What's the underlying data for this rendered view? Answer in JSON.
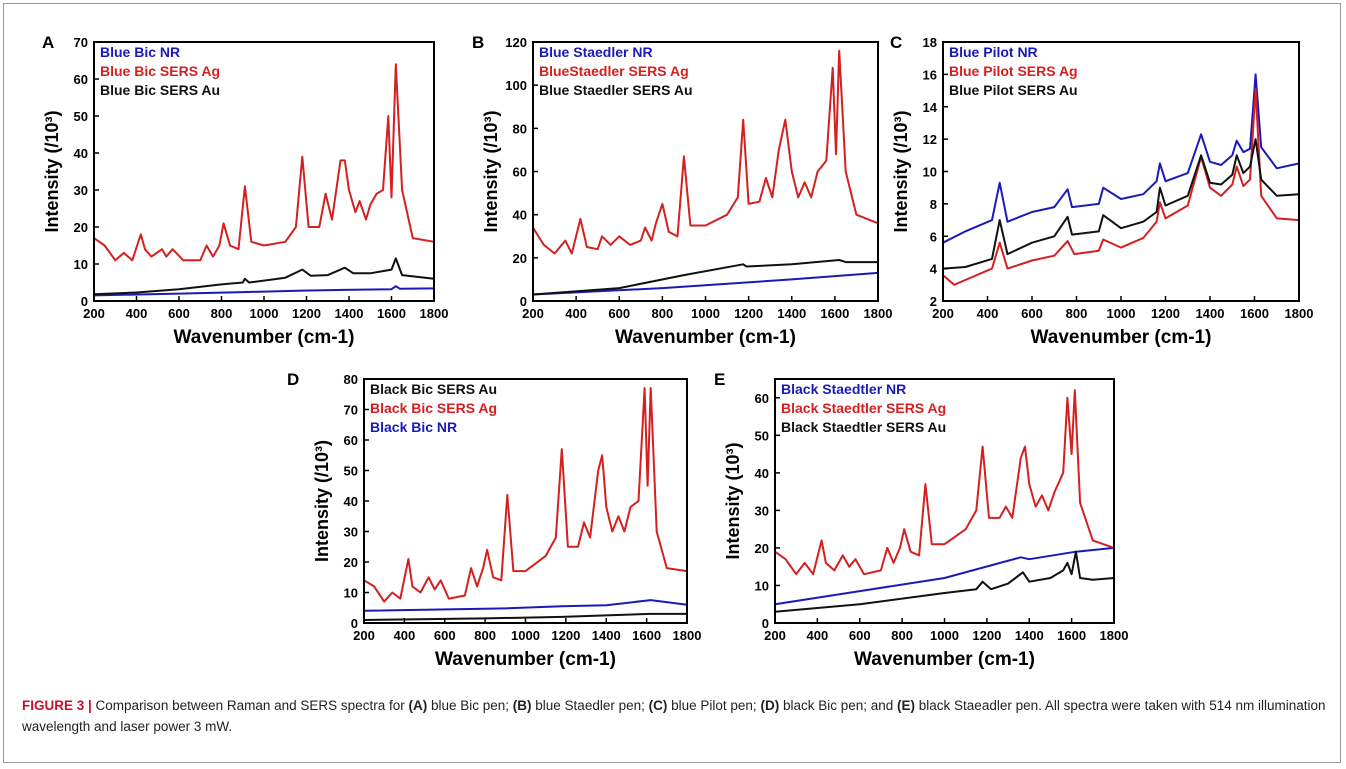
{
  "caption": {
    "label": "FIGURE 3 |",
    "segments": [
      {
        "text": " Comparison between Raman and SERS spectra for ",
        "bold": false
      },
      {
        "text": "(A)",
        "bold": true
      },
      {
        "text": " blue Bic pen; ",
        "bold": false
      },
      {
        "text": "(B)",
        "bold": true
      },
      {
        "text": " blue Staedler pen; ",
        "bold": false
      },
      {
        "text": "(C)",
        "bold": true
      },
      {
        "text": " blue Pilot pen; ",
        "bold": false
      },
      {
        "text": "(D)",
        "bold": true
      },
      {
        "text": " black Bic pen; and ",
        "bold": false
      },
      {
        "text": "(E)",
        "bold": true
      },
      {
        "text": " black Staeadler pen. All spectra were taken with 514 nm illumination wavelength and laser power 3 mW.",
        "bold": false
      }
    ]
  },
  "colors": {
    "blue": "#1a1ab8",
    "red": "#d42020",
    "black": "#111111"
  },
  "chart_data": [
    {
      "panel": "A",
      "type": "line",
      "xlabel": "Wavenumber (cm-1)",
      "ylabel": "Intensity (/10³)",
      "xlim": [
        200,
        1800
      ],
      "ylim": [
        0,
        70
      ],
      "xticks": [
        200,
        400,
        600,
        800,
        1000,
        1200,
        1400,
        1600,
        1800
      ],
      "yticks": [
        0,
        10,
        20,
        30,
        40,
        50,
        60,
        70
      ],
      "series": [
        {
          "name": "Blue Bic  NR",
          "color": "blue",
          "x": [
            200,
            600,
            900,
            1180,
            1380,
            1600,
            1620,
            1640,
            1800
          ],
          "y": [
            1.5,
            2.0,
            2.4,
            2.8,
            3.0,
            3.2,
            4.0,
            3.3,
            3.4
          ]
        },
        {
          "name": "Blue Bic  SERS Ag",
          "color": "red",
          "x": [
            200,
            250,
            300,
            340,
            380,
            420,
            440,
            470,
            520,
            540,
            570,
            620,
            700,
            730,
            760,
            790,
            810,
            840,
            880,
            910,
            940,
            1000,
            1100,
            1150,
            1180,
            1210,
            1260,
            1290,
            1320,
            1360,
            1380,
            1400,
            1430,
            1450,
            1480,
            1500,
            1530,
            1560,
            1585,
            1600,
            1620,
            1650,
            1700,
            1800
          ],
          "y": [
            17,
            15,
            11,
            13,
            11,
            18,
            14,
            12,
            14,
            12,
            14,
            11,
            11,
            15,
            12,
            15,
            21,
            15,
            14,
            31,
            16,
            15,
            16,
            20,
            39,
            20,
            20,
            29,
            22,
            38,
            38,
            30,
            24,
            27,
            22,
            26,
            29,
            30,
            50,
            28,
            64,
            30,
            17,
            16
          ]
        },
        {
          "name": "Blue Bic  SERS Au",
          "color": "black",
          "x": [
            200,
            400,
            600,
            800,
            900,
            910,
            930,
            1000,
            1100,
            1180,
            1220,
            1300,
            1380,
            1420,
            1500,
            1600,
            1620,
            1650,
            1800
          ],
          "y": [
            1.8,
            2.3,
            3.2,
            4.5,
            5.0,
            6.0,
            5.0,
            5.5,
            6.3,
            8.5,
            6.8,
            7.0,
            9.0,
            7.5,
            7.5,
            8.5,
            11.5,
            7.0,
            6.0
          ]
        }
      ]
    },
    {
      "panel": "B",
      "type": "line",
      "xlabel": "Wavenumber (cm-1)",
      "ylabel": "Intensity (/10³)",
      "xlim": [
        200,
        1800
      ],
      "ylim": [
        0,
        120
      ],
      "xticks": [
        200,
        400,
        600,
        800,
        1000,
        1200,
        1400,
        1600,
        1800
      ],
      "yticks": [
        0,
        20,
        40,
        60,
        80,
        100,
        120
      ],
      "series": [
        {
          "name": "Blue Staedler NR",
          "color": "blue",
          "x": [
            200,
            800,
            1400,
            1800
          ],
          "y": [
            3,
            6,
            10,
            13
          ]
        },
        {
          "name": "BlueStaedler SERS Ag",
          "color": "red",
          "x": [
            200,
            250,
            300,
            350,
            380,
            420,
            450,
            500,
            520,
            560,
            600,
            650,
            700,
            720,
            750,
            770,
            800,
            830,
            870,
            900,
            930,
            1000,
            1100,
            1150,
            1175,
            1200,
            1250,
            1280,
            1310,
            1340,
            1370,
            1400,
            1430,
            1460,
            1490,
            1520,
            1560,
            1590,
            1605,
            1620,
            1650,
            1700,
            1800
          ],
          "y": [
            34,
            26,
            22,
            28,
            22,
            38,
            25,
            24,
            30,
            26,
            30,
            26,
            28,
            34,
            28,
            36,
            45,
            32,
            30,
            67,
            35,
            35,
            40,
            48,
            84,
            45,
            46,
            57,
            48,
            70,
            84,
            60,
            48,
            55,
            48,
            60,
            65,
            108,
            68,
            116,
            60,
            40,
            36
          ]
        },
        {
          "name": "Blue Staedler SERS Au",
          "color": "black",
          "x": [
            200,
            600,
            900,
            1175,
            1190,
            1400,
            1620,
            1650,
            1800
          ],
          "y": [
            3,
            6,
            12,
            17,
            16,
            17,
            19,
            18,
            18
          ]
        }
      ]
    },
    {
      "panel": "C",
      "type": "line",
      "xlabel": "Wavenumber (cm-1)",
      "ylabel": "Intensity (/10³)",
      "xlim": [
        200,
        1800
      ],
      "ylim": [
        2,
        18
      ],
      "xticks": [
        200,
        400,
        600,
        800,
        1000,
        1200,
        1400,
        1600,
        1800
      ],
      "yticks": [
        2,
        4,
        6,
        8,
        10,
        12,
        14,
        16,
        18
      ],
      "series": [
        {
          "name": "Blue Pilot NR",
          "color": "blue",
          "x": [
            200,
            300,
            420,
            455,
            490,
            600,
            700,
            760,
            780,
            900,
            920,
            1000,
            1100,
            1160,
            1175,
            1200,
            1300,
            1360,
            1400,
            1450,
            1500,
            1520,
            1550,
            1580,
            1605,
            1630,
            1700,
            1800
          ],
          "y": [
            5.6,
            6.3,
            7.0,
            9.3,
            6.9,
            7.5,
            7.8,
            8.9,
            7.8,
            8.0,
            9.0,
            8.3,
            8.6,
            9.4,
            10.5,
            9.4,
            9.9,
            12.3,
            10.6,
            10.4,
            11.0,
            11.9,
            11.2,
            11.4,
            16.0,
            11.5,
            10.2,
            10.5
          ]
        },
        {
          "name": "Blue Pilot SERS Ag",
          "color": "red",
          "x": [
            200,
            250,
            300,
            420,
            455,
            490,
            600,
            700,
            760,
            790,
            900,
            920,
            1000,
            1100,
            1160,
            1175,
            1200,
            1300,
            1360,
            1400,
            1450,
            1500,
            1520,
            1550,
            1580,
            1605,
            1630,
            1700,
            1800
          ],
          "y": [
            3.6,
            3.0,
            3.3,
            4.0,
            5.6,
            4.0,
            4.5,
            4.8,
            5.7,
            4.9,
            5.1,
            5.8,
            5.3,
            5.9,
            6.9,
            8.1,
            7.1,
            7.9,
            10.9,
            9.0,
            8.5,
            9.2,
            10.3,
            9.1,
            9.5,
            15.1,
            8.5,
            7.1,
            7.0
          ]
        },
        {
          "name": "Blue Pilot SERS Au",
          "color": "black",
          "x": [
            200,
            300,
            420,
            455,
            490,
            600,
            700,
            760,
            780,
            900,
            920,
            1000,
            1100,
            1160,
            1175,
            1200,
            1300,
            1360,
            1400,
            1450,
            1500,
            1520,
            1550,
            1580,
            1605,
            1630,
            1700,
            1800
          ],
          "y": [
            4.0,
            4.1,
            4.6,
            7.0,
            4.9,
            5.6,
            6.0,
            7.2,
            6.1,
            6.3,
            7.3,
            6.5,
            6.9,
            7.5,
            9.0,
            7.9,
            8.5,
            11.0,
            9.3,
            9.2,
            9.8,
            11.0,
            9.9,
            10.3,
            12.0,
            9.5,
            8.5,
            8.6
          ]
        }
      ]
    },
    {
      "panel": "D",
      "type": "line",
      "xlabel": "Wavenumber (cm-1)",
      "ylabel": "Intensity (/10³)",
      "xlim": [
        200,
        1800
      ],
      "ylim": [
        0,
        80
      ],
      "xticks": [
        200,
        400,
        600,
        800,
        1000,
        1200,
        1400,
        1600,
        1800
      ],
      "yticks": [
        0,
        10,
        20,
        30,
        40,
        50,
        60,
        70,
        80
      ],
      "series": [
        {
          "name": "Black Bic SERS Au",
          "color": "black",
          "x": [
            200,
            800,
            1180,
            1400,
            1620,
            1800
          ],
          "y": [
            1.0,
            1.5,
            2.0,
            2.5,
            3.0,
            3.0
          ]
        },
        {
          "name": "Black Bic SERS Ag",
          "color": "red",
          "x": [
            200,
            250,
            300,
            340,
            380,
            420,
            440,
            480,
            520,
            550,
            580,
            620,
            700,
            730,
            760,
            790,
            810,
            840,
            880,
            910,
            940,
            1000,
            1100,
            1150,
            1180,
            1210,
            1260,
            1290,
            1320,
            1360,
            1380,
            1400,
            1430,
            1460,
            1490,
            1520,
            1560,
            1590,
            1605,
            1620,
            1650,
            1700,
            1800
          ],
          "y": [
            14,
            12,
            7,
            10,
            8,
            21,
            12,
            10,
            15,
            11,
            14,
            8,
            9,
            18,
            12,
            18,
            24,
            15,
            14,
            42,
            17,
            17,
            22,
            28,
            57,
            25,
            25,
            33,
            28,
            50,
            55,
            38,
            30,
            35,
            30,
            38,
            40,
            77,
            45,
            77,
            30,
            18,
            17
          ]
        },
        {
          "name": "Black Bic NR",
          "color": "blue",
          "x": [
            200,
            900,
            1180,
            1400,
            1620,
            1800
          ],
          "y": [
            4.0,
            4.8,
            5.5,
            5.8,
            7.5,
            6.0
          ]
        }
      ]
    },
    {
      "panel": "E",
      "type": "line",
      "xlabel": "Wavenumber (cm-1)",
      "ylabel": "Intensity (10³)",
      "xlim": [
        200,
        1800
      ],
      "ylim": [
        0,
        65
      ],
      "xticks": [
        200,
        400,
        600,
        800,
        1000,
        1200,
        1400,
        1600,
        1800
      ],
      "yticks": [
        0,
        10,
        20,
        30,
        40,
        50,
        60
      ],
      "series": [
        {
          "name": "Black Staedtler  NR",
          "color": "blue",
          "x": [
            200,
            600,
            1000,
            1360,
            1400,
            1620,
            1800
          ],
          "y": [
            5,
            8.5,
            12,
            17.5,
            17,
            19,
            20
          ]
        },
        {
          "name": "Black Staedtler SERS Ag",
          "color": "red",
          "x": [
            200,
            250,
            300,
            340,
            380,
            420,
            440,
            480,
            520,
            550,
            580,
            620,
            700,
            730,
            760,
            790,
            810,
            840,
            880,
            910,
            940,
            1000,
            1100,
            1150,
            1180,
            1210,
            1260,
            1290,
            1320,
            1360,
            1380,
            1400,
            1430,
            1460,
            1490,
            1520,
            1560,
            1580,
            1600,
            1615,
            1640,
            1700,
            1800
          ],
          "y": [
            19,
            17,
            13,
            16,
            13,
            22,
            16,
            14,
            18,
            15,
            17,
            13,
            14,
            20,
            16,
            20,
            25,
            19,
            18,
            37,
            21,
            21,
            25,
            30,
            47,
            28,
            28,
            31,
            28,
            44,
            47,
            37,
            31,
            34,
            30,
            35,
            40,
            60,
            45,
            62,
            32,
            22,
            20
          ]
        },
        {
          "name": "Black Staedtler SERS Au",
          "color": "black",
          "x": [
            200,
            600,
            1000,
            1150,
            1180,
            1220,
            1300,
            1370,
            1400,
            1500,
            1560,
            1580,
            1600,
            1620,
            1640,
            1700,
            1800
          ],
          "y": [
            3,
            5,
            8,
            9,
            11,
            9,
            10.5,
            13.5,
            11,
            12,
            14,
            16,
            13,
            19,
            12,
            11.5,
            12
          ]
        }
      ]
    }
  ]
}
